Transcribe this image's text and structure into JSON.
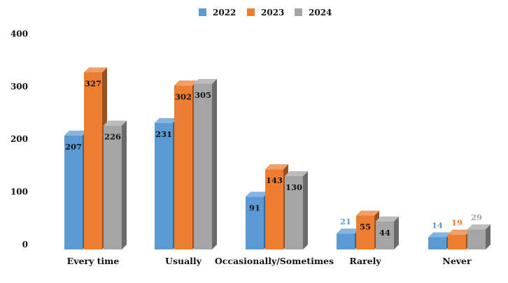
{
  "chart_data": {
    "type": "bar",
    "categories": [
      "Every time",
      "Usually",
      "Occasionally/Sometimes",
      "Rarely",
      "Never"
    ],
    "series": [
      {
        "name": "2022",
        "values": [
          207,
          231,
          91,
          21,
          14
        ],
        "color": "#5B9BD5"
      },
      {
        "name": "2023",
        "values": [
          327,
          302,
          143,
          55,
          19
        ],
        "color": "#ED7D31"
      },
      {
        "name": "2024",
        "values": [
          226,
          305,
          130,
          44,
          29
        ],
        "color": "#A5A5A5"
      }
    ],
    "yticks": [
      0,
      100,
      200,
      300,
      400
    ],
    "ylim": [
      0,
      400
    ],
    "grid": false,
    "legend": "top-center",
    "style": "3d-clustered-column",
    "title": "",
    "xlabel": "",
    "ylabel": ""
  }
}
